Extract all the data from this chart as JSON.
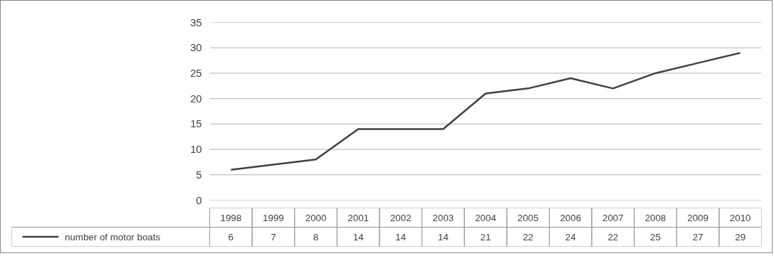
{
  "chart_data": {
    "type": "line",
    "categories": [
      "1998",
      "1999",
      "2000",
      "2001",
      "2002",
      "2003",
      "2004",
      "2005",
      "2006",
      "2007",
      "2008",
      "2009",
      "2010"
    ],
    "series": [
      {
        "name": "number of motor boats",
        "color": "#404040",
        "values": [
          6,
          7,
          8,
          14,
          14,
          14,
          21,
          22,
          24,
          22,
          25,
          27,
          29
        ]
      }
    ],
    "ylim": [
      0,
      35
    ],
    "yticks": [
      0,
      5,
      10,
      15,
      20,
      25,
      30,
      35
    ],
    "grid": "y",
    "legend": "bottom left",
    "data_labels": true,
    "marker": "none",
    "line_style": "solid"
  }
}
